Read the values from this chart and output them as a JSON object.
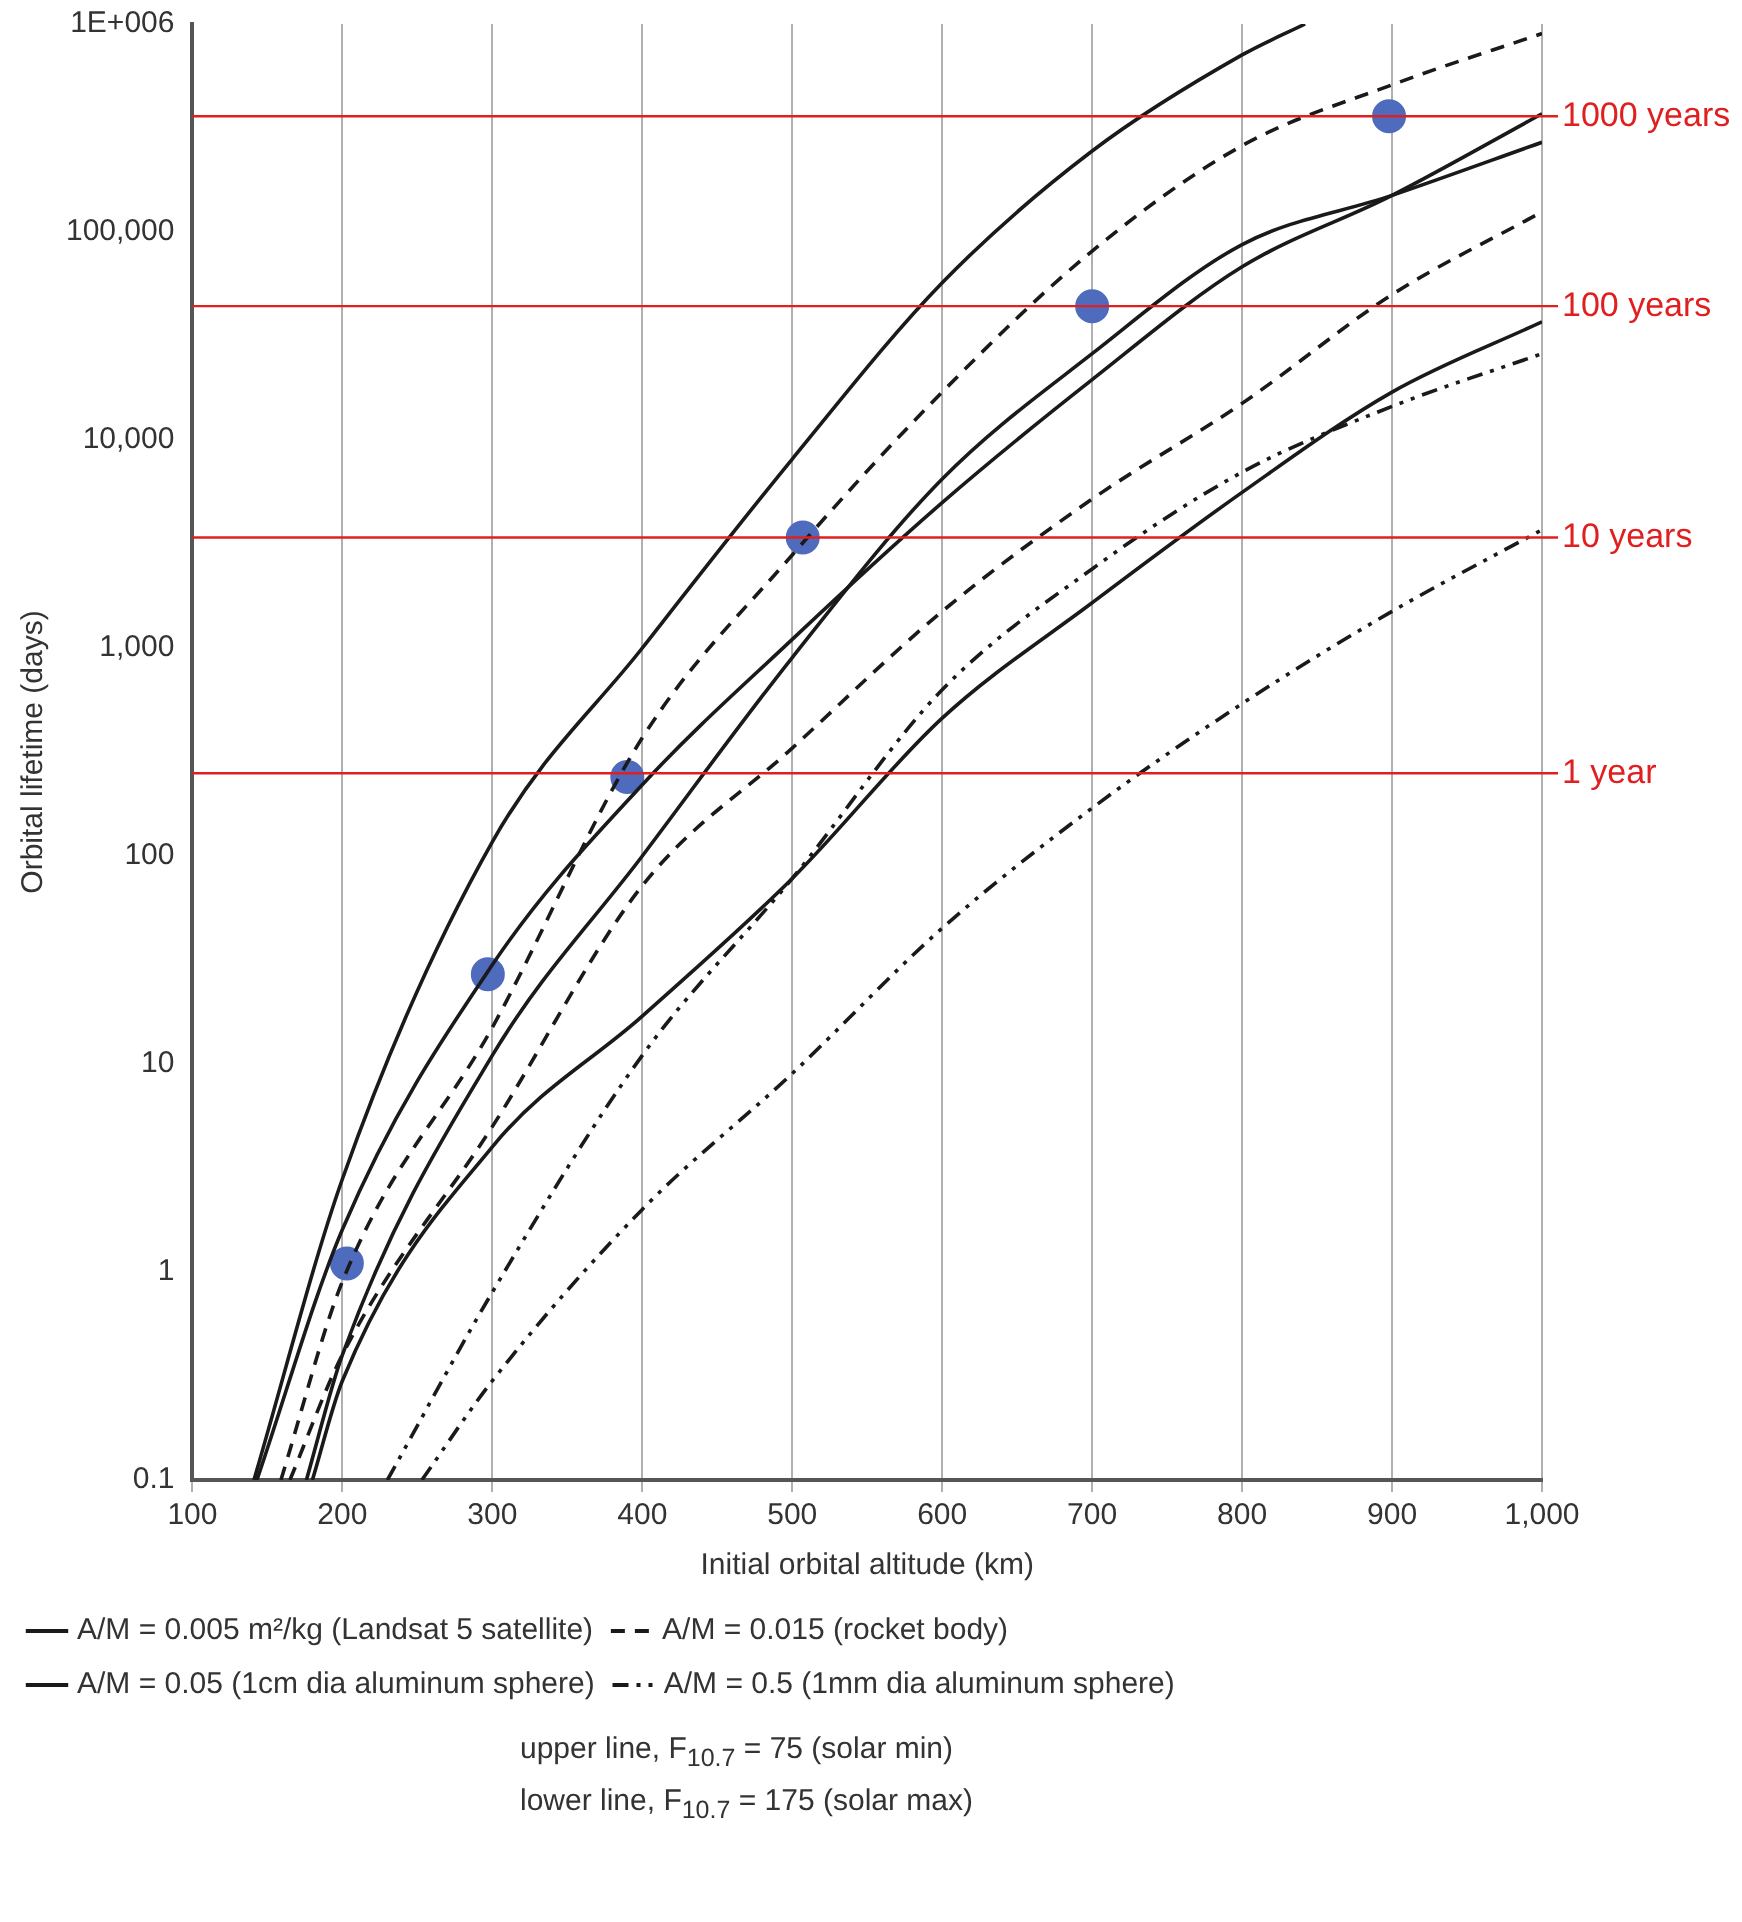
{
  "chart_data": {
    "type": "line",
    "xlabel": "Initial orbital altitude (km)",
    "ylabel": "Orbital lifetime (days)",
    "log": "y",
    "grid": "x",
    "legend": "bottom",
    "marker": "none",
    "xlim": [
      100,
      1000
    ],
    "xticks": [
      100,
      200,
      300,
      400,
      500,
      600,
      700,
      800,
      900,
      {
        "value": 1000,
        "label": "1,000"
      }
    ],
    "ylim": [
      0.1,
      1000000
    ],
    "yticks": [
      0.1,
      1,
      10,
      100,
      {
        "value": 1000,
        "label": "1,000"
      },
      {
        "value": 10000,
        "label": "10,000"
      },
      {
        "value": 100000,
        "label": "100,000"
      },
      {
        "value": 1000000,
        "label": "1E+006"
      }
    ],
    "series": [
      {
        "name": "A/M = 0.005 m²/kg (Landsat 5 satellite)",
        "color": "#1a1a1a",
        "line_style": "solid",
        "x": [
          141,
          200,
          300,
          400,
          500,
          600,
          700,
          800,
          842
        ],
        "values": [
          0.1,
          2.8,
          117,
          1000,
          8100,
          57000,
          245000,
          710000,
          1000000
        ]
      },
      {
        "color": "#1a1a1a",
        "line_style": "solid",
        "x": [
          143,
          200,
          300,
          400,
          500,
          600,
          700,
          800,
          900,
          1000
        ],
        "values": [
          0.1,
          1.6,
          30,
          220,
          1100,
          5000,
          19500,
          68000,
          150000,
          370000
        ]
      },
      {
        "name": "A/M = 0.015 (rocket body)",
        "color": "#1a1a1a",
        "line_style": "dashed",
        "x": [
          159,
          200,
          300,
          400,
          500,
          600,
          700,
          800,
          900,
          1000
        ],
        "values": [
          0.1,
          0.9,
          15,
          370,
          2800,
          17000,
          81000,
          260000,
          510000,
          900000
        ]
      },
      {
        "color": "#1a1a1a",
        "line_style": "dashed",
        "x": [
          165,
          200,
          300,
          400,
          500,
          600,
          700,
          800,
          900,
          1000
        ],
        "values": [
          0.1,
          0.4,
          5,
          72,
          330,
          1500,
          5200,
          15000,
          50000,
          125000
        ]
      },
      {
        "name": "A/M = 0.05 (1cm dia aluminum sphere)",
        "color": "#1a1a1a",
        "line_style": "solid",
        "x": [
          176,
          200,
          300,
          400,
          500,
          600,
          700,
          800,
          900,
          1000
        ],
        "values": [
          0.1,
          0.4,
          11,
          100,
          900,
          6500,
          26000,
          87000,
          150000,
          270000
        ]
      },
      {
        "color": "#1a1a1a",
        "line_style": "solid",
        "x": [
          180,
          200,
          300,
          400,
          500,
          600,
          700,
          800,
          900,
          1000
        ],
        "values": [
          0.1,
          0.3,
          4,
          17,
          78,
          460,
          1650,
          5600,
          17000,
          37000
        ]
      },
      {
        "name": "A/M = 0.5 (1mm dia aluminum sphere)",
        "color": "#1a1a1a",
        "line_style": "dotted",
        "x": [
          230,
          300,
          400,
          500,
          600,
          700,
          800,
          900,
          1000
        ],
        "values": [
          0.1,
          0.8,
          11,
          78,
          630,
          2400,
          7000,
          14500,
          26000
        ]
      },
      {
        "color": "#1a1a1a",
        "line_style": "dotted",
        "x": [
          253,
          300,
          400,
          500,
          600,
          700,
          800,
          900,
          1000
        ],
        "values": [
          0.1,
          0.3,
          2,
          9,
          45,
          170,
          540,
          1500,
          3700
        ]
      },
      {
        "type": "scatter",
        "marker": "circle",
        "color": "#4f6bbd",
        "x": [
          203,
          297,
          390,
          507,
          700,
          898
        ],
        "values": [
          1.1,
          27,
          240,
          3400,
          44000,
          360000
        ]
      }
    ],
    "ref_lines": [
      {
        "axis": "y",
        "value": 250,
        "label": "1 year",
        "color": "#e02020"
      },
      {
        "axis": "y",
        "value": 3400,
        "label": "10 years",
        "color": "#e02020"
      },
      {
        "axis": "y",
        "value": 44000,
        "label": "100 years",
        "color": "#e02020"
      },
      {
        "axis": "y",
        "value": 360000,
        "label": "1000 years",
        "color": "#e02020"
      }
    ],
    "annotations": [
      "upper line, F$_{10.7}$ = 75 (solar min)",
      "lower line, F$_{10.7}$ = 175 (solar max)"
    ]
  }
}
